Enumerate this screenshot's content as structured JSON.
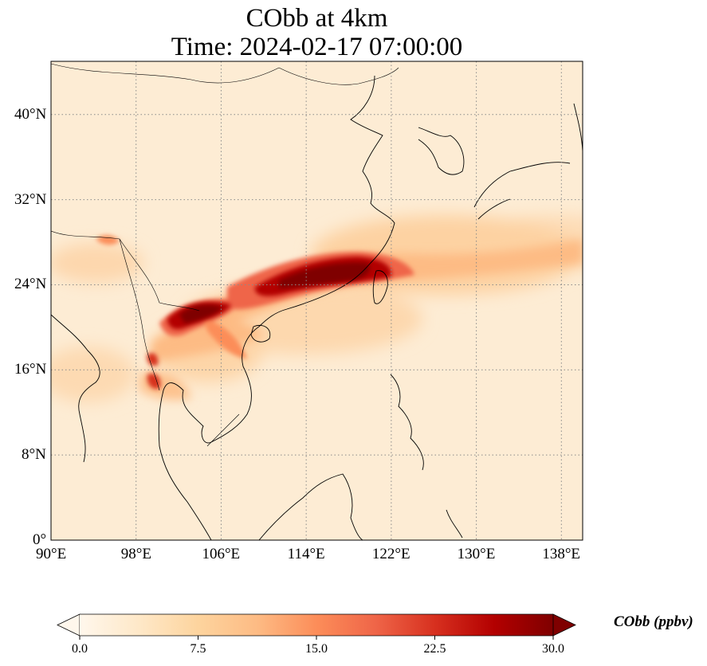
{
  "title": {
    "line1": "CObb at 4km",
    "line2": "Time: 2024-02-17 07:00:00"
  },
  "map": {
    "projection": "PlateCarree",
    "extent": {
      "lon": [
        90,
        140
      ],
      "lat": [
        0,
        45
      ]
    },
    "gridlines": {
      "style": "dotted",
      "color": "#8a8a8a"
    },
    "coastline_color": "#000000",
    "lon_ticks": [
      {
        "value": 90,
        "label": "90°E"
      },
      {
        "value": 98,
        "label": "98°E"
      },
      {
        "value": 106,
        "label": "106°E"
      },
      {
        "value": 114,
        "label": "114°E"
      },
      {
        "value": 122,
        "label": "122°E"
      },
      {
        "value": 130,
        "label": "130°E"
      },
      {
        "value": 138,
        "label": "138°E"
      }
    ],
    "lat_ticks": [
      {
        "value": 0,
        "label": "0°"
      },
      {
        "value": 8,
        "label": "8°N"
      },
      {
        "value": 16,
        "label": "16°N"
      },
      {
        "value": 24,
        "label": "24°N"
      },
      {
        "value": 32,
        "label": "32°N"
      },
      {
        "value": 40,
        "label": "40°N"
      }
    ]
  },
  "colorbar": {
    "label": "CObb (ppbv)",
    "colormap": "OrRd",
    "min": 0,
    "max": 30,
    "extend": "both",
    "colors": [
      "#fff7ec",
      "#fee8c8",
      "#fdd49e",
      "#fdbb84",
      "#fc8d59",
      "#ef6548",
      "#d7301f",
      "#b30000",
      "#7f0000"
    ],
    "ticks": [
      {
        "value": 0,
        "label": "0.0"
      },
      {
        "value": 7.5,
        "label": "7.5"
      },
      {
        "value": 15,
        "label": "15.0"
      },
      {
        "value": 22.5,
        "label": "22.5"
      },
      {
        "value": 30,
        "label": "30.0"
      }
    ]
  }
}
